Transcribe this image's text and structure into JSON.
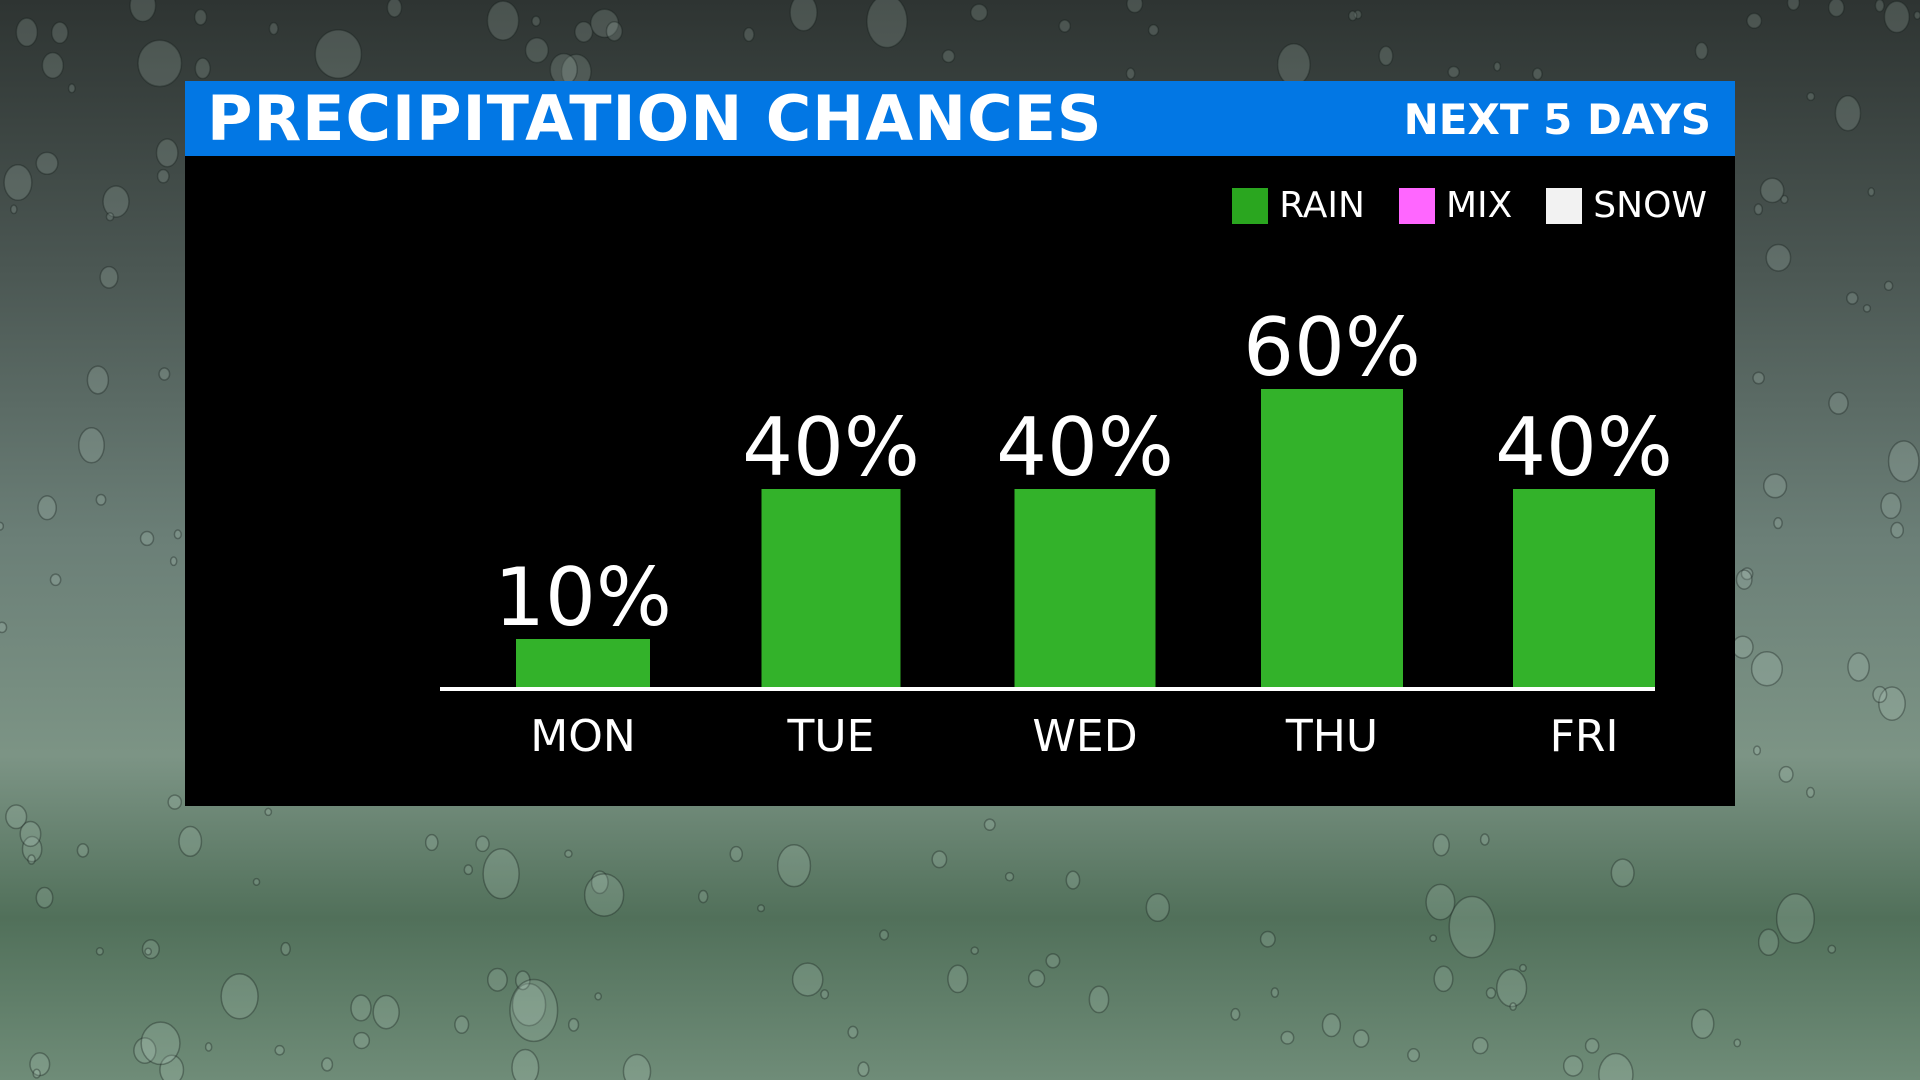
{
  "header": {
    "title": "PRECIPITATION CHANCES",
    "subtitle": "NEXT 5 DAYS"
  },
  "colors": {
    "header_bg": "#0277e4",
    "panel_bg": "#000000",
    "rain": "#33b22a",
    "mix": "#ff66ff",
    "snow": "#f2f2f2",
    "axis": "#ffffff",
    "text": "#ffffff"
  },
  "legend": [
    {
      "label": "RAIN",
      "color": "#2aa61f"
    },
    {
      "label": "MIX",
      "color": "#ff66ff"
    },
    {
      "label": "SNOW",
      "color": "#f2f2f2"
    }
  ],
  "chart_data": {
    "type": "bar",
    "title": "PRECIPITATION CHANCES",
    "subtitle": "NEXT 5 DAYS",
    "categories": [
      "MON",
      "TUE",
      "WED",
      "THU",
      "FRI"
    ],
    "values": [
      10,
      40,
      40,
      60,
      40
    ],
    "value_labels": [
      "10%",
      "40%",
      "40%",
      "60%",
      "40%"
    ],
    "series": [
      {
        "name": "RAIN",
        "values": [
          10,
          40,
          40,
          60,
          40
        ]
      }
    ],
    "ylim": [
      0,
      100
    ],
    "grid": false,
    "legend_position": "top-right"
  }
}
